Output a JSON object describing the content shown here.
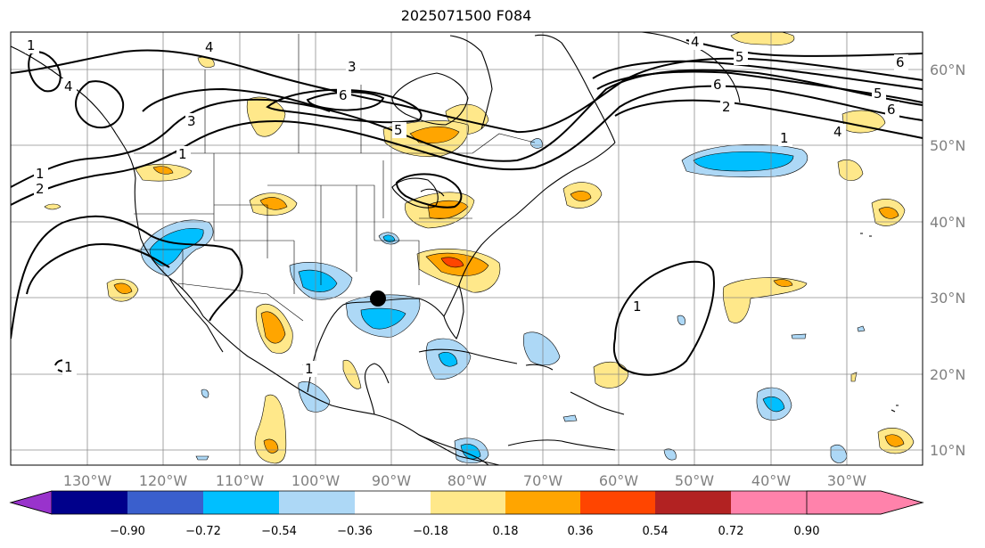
{
  "title": "2025071500 F084",
  "map": {
    "lon_labels": [
      "130°W",
      "120°W",
      "110°W",
      "100°W",
      "90°W",
      "80°W",
      "70°W",
      "60°W",
      "50°W",
      "40°W",
      "30°W"
    ],
    "lat_labels": [
      "60°N",
      "50°N",
      "40°N",
      "30°N",
      "20°N",
      "10°N"
    ],
    "grid": true,
    "contour_labels": [
      "1",
      "4",
      "3",
      "6",
      "5",
      "4",
      "3",
      "1",
      "2",
      "1",
      "1",
      "6",
      "5",
      "4",
      "6",
      "2",
      "5",
      "1",
      "4",
      "6",
      "1",
      "1"
    ]
  },
  "colorbar": {
    "ticks": [
      "−0.90",
      "−0.72",
      "−0.54",
      "−0.36",
      "−0.18",
      "0.18",
      "0.36",
      "0.54",
      "0.72",
      "0.90"
    ],
    "colors": [
      "#9933cc",
      "#00008b",
      "#3a5fcd",
      "#00bfff",
      "#add8f6",
      "#ffffff",
      "#ffe88a",
      "#ffa500",
      "#ff4500",
      "#b22222",
      "#ff82ab"
    ]
  }
}
